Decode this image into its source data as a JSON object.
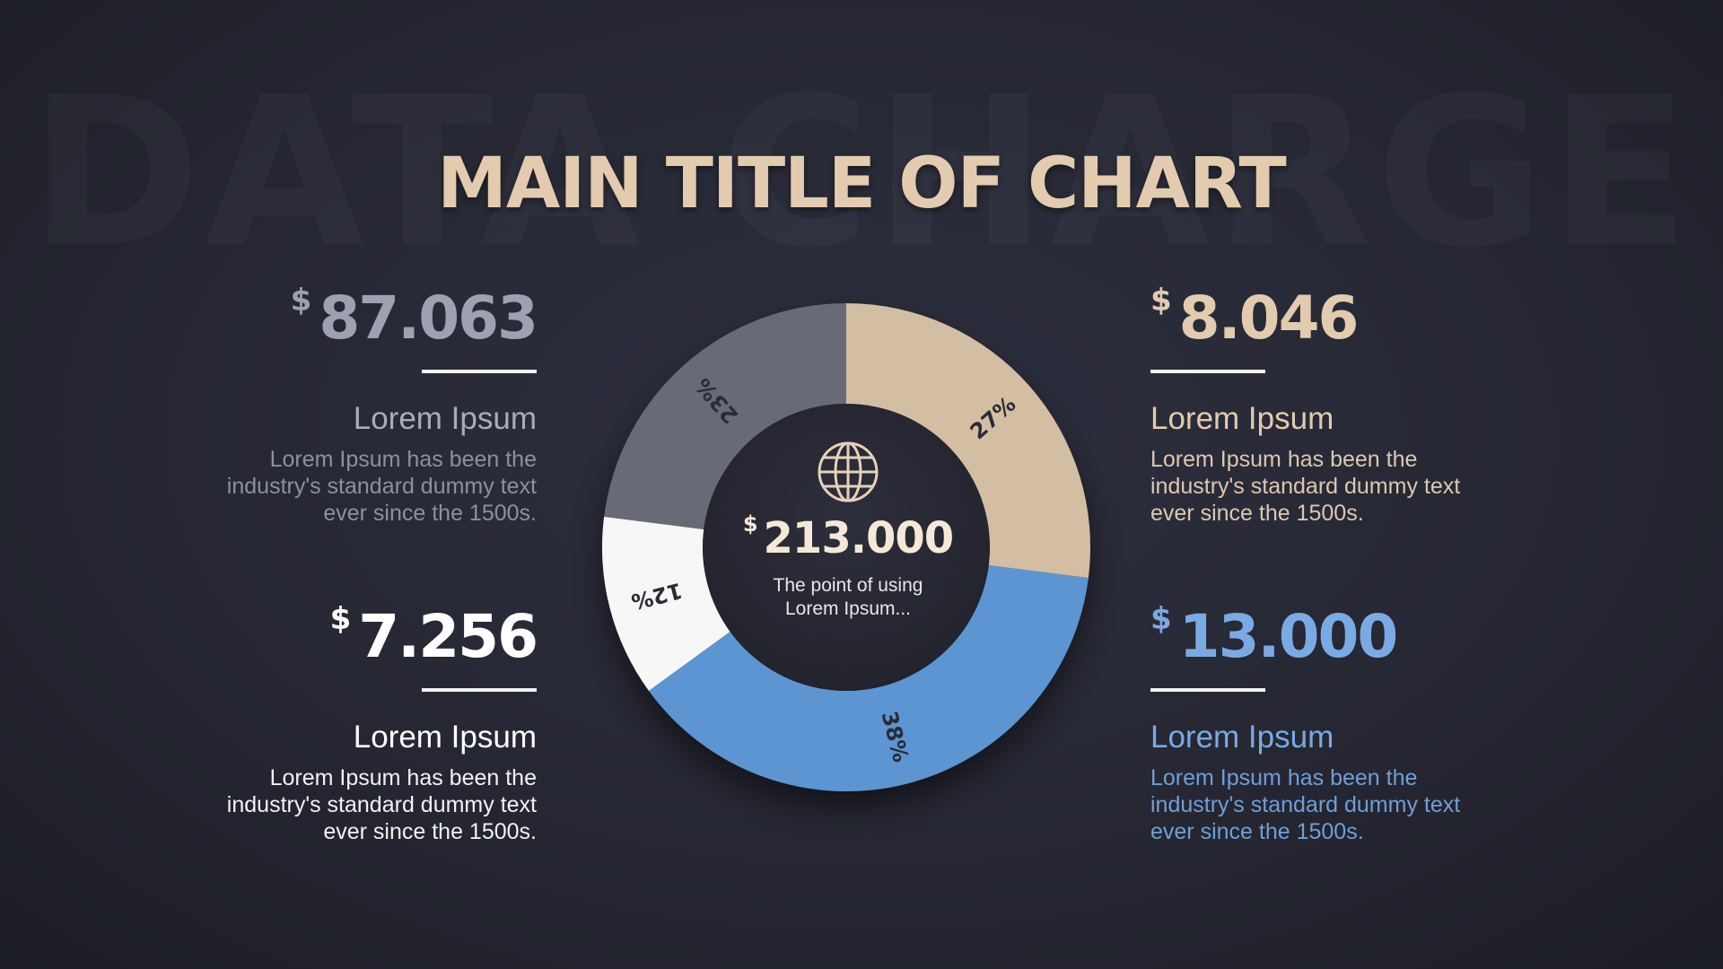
{
  "watermark": "DATA CHARGE",
  "title": "MAIN TITLE OF CHART",
  "currency_symbol": "$",
  "colors": {
    "title": "#e2cbae",
    "tan": "#d4bea3",
    "blue": "#5b95d1",
    "white": "#f7f7f7",
    "gray": "#686a74",
    "center": "#292a35",
    "blue_text": "#7aaae3",
    "gray_text": "#9ea1b0"
  },
  "stats": [
    {
      "id": "top-left",
      "value": "87.063",
      "heading": "Lorem Ipsum",
      "desc": [
        "Lorem Ipsum has been the",
        "industry's standard dummy text",
        "ever since the 1500s."
      ]
    },
    {
      "id": "bottom-left",
      "value": "7.256",
      "heading": "Lorem Ipsum",
      "desc": [
        "Lorem Ipsum has been the",
        "industry's standard dummy text",
        "ever since the 1500s."
      ]
    },
    {
      "id": "top-right",
      "value": "8.046",
      "heading": "Lorem Ipsum",
      "desc": [
        "Lorem Ipsum has been the",
        "industry's standard dummy text",
        "ever since the 1500s."
      ]
    },
    {
      "id": "bottom-right",
      "value": "13.000",
      "heading": "Lorem Ipsum",
      "desc": [
        "Lorem Ipsum has been the",
        "industry's standard dummy text",
        "ever since the 1500s."
      ]
    }
  ],
  "center": {
    "icon": "globe-icon",
    "total": "213.000",
    "caption": [
      "The point of using",
      "Lorem Ipsum..."
    ]
  },
  "chart_data": {
    "type": "pie",
    "donut": true,
    "title": "MAIN TITLE OF CHART",
    "start": "top",
    "direction": "clockwise",
    "slices": [
      {
        "label": "27%",
        "value": 27,
        "color": "#d4bea3"
      },
      {
        "label": "38%",
        "value": 38,
        "color": "#5b95d1"
      },
      {
        "label": "12%",
        "value": 12,
        "color": "#f7f7f7"
      },
      {
        "label": "23%",
        "value": 23,
        "color": "#686a74"
      }
    ]
  }
}
